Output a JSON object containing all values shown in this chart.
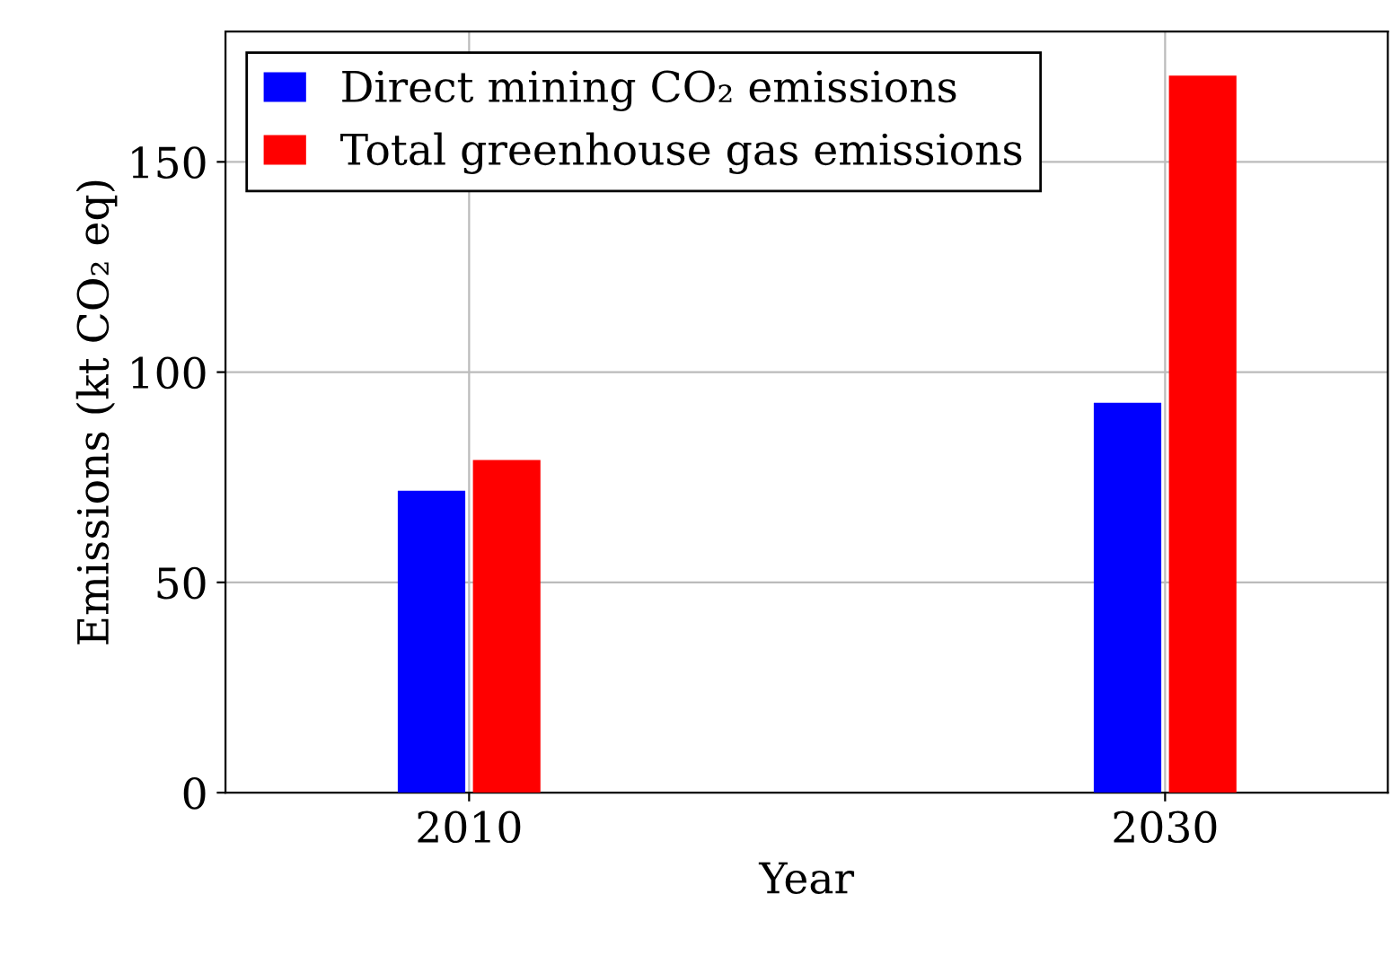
{
  "chart_data": {
    "type": "bar",
    "xlabel": "Year",
    "ylabel": "Emissions (kt CO₂ eq)",
    "categories": [
      "2010",
      "2030"
    ],
    "series": [
      {
        "name": "Direct mining CO₂ emissions",
        "color": "#0000ff",
        "values": [
          71.8,
          92.7
        ]
      },
      {
        "name": "Total greenhouse gas emissions",
        "color": "#ff0000",
        "values": [
          79.1,
          170.5
        ]
      }
    ],
    "ylim": [
      0,
      181
    ],
    "yticks": [
      0,
      50,
      100,
      150
    ],
    "grid": true,
    "legend": "top left"
  }
}
